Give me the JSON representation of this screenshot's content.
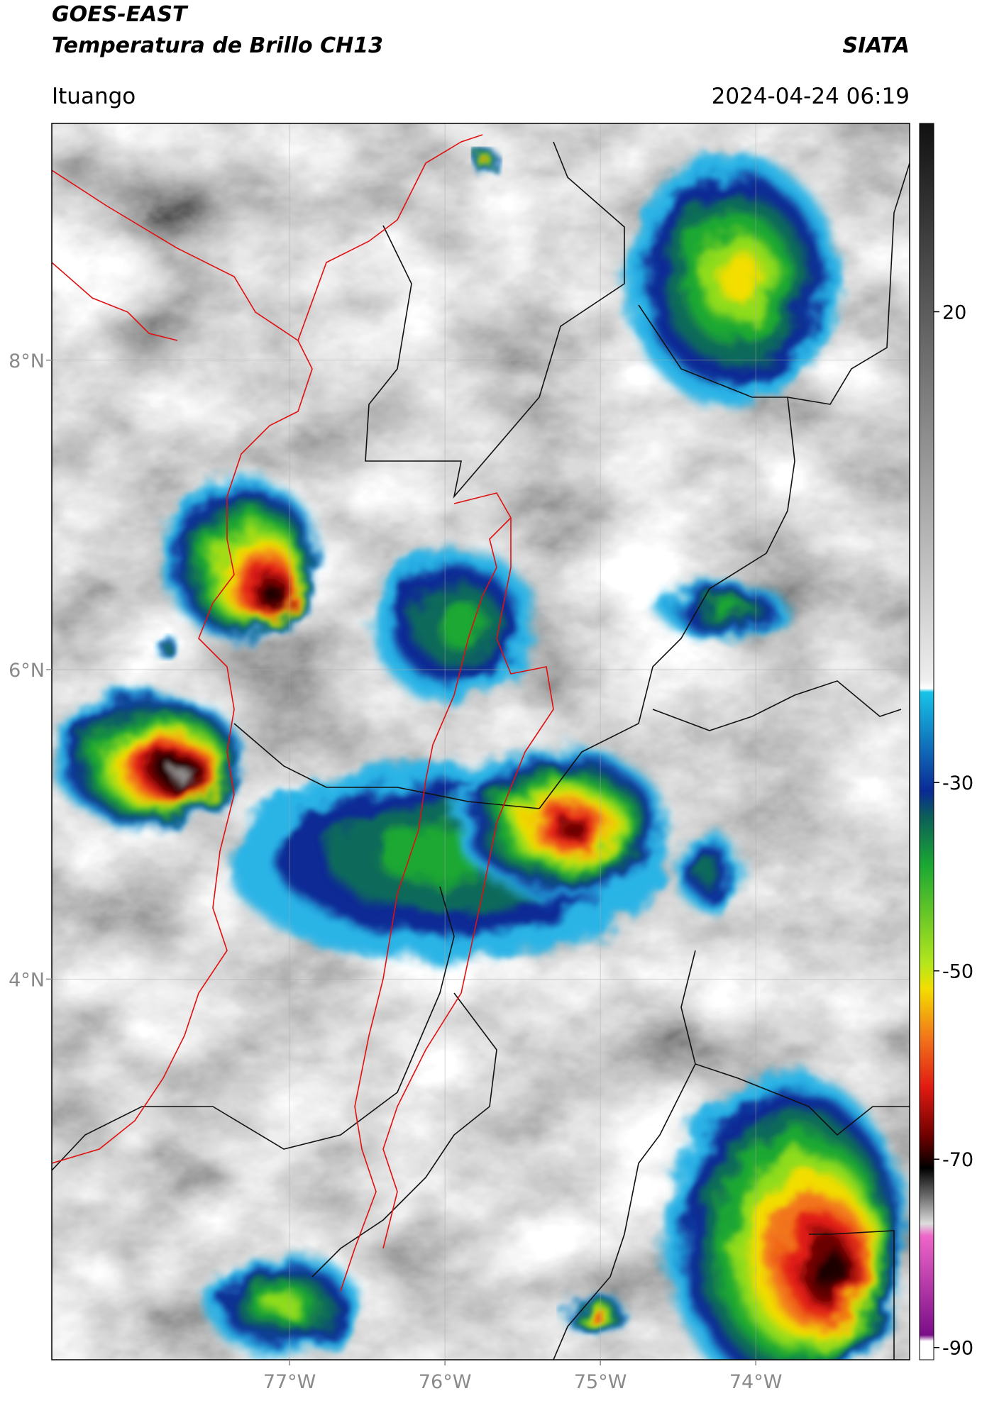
{
  "header": {
    "title": "GOES-EAST",
    "subtitle": "Temperatura de Brillo CH13",
    "source": "SIATA",
    "location": "Ituango",
    "datetime": "2024-04-24 06:19"
  },
  "map": {
    "xlim": [
      -78.53,
      -73.01
    ],
    "ylim": [
      1.54,
      9.53
    ],
    "xticks": [
      {
        "value": -77,
        "label": "77°W"
      },
      {
        "value": -76,
        "label": "76°W"
      },
      {
        "value": -75,
        "label": "75°W"
      },
      {
        "value": -74,
        "label": "74°W"
      }
    ],
    "yticks": [
      {
        "value": 8,
        "label": "8°N"
      },
      {
        "value": 6,
        "label": "6°N"
      },
      {
        "value": 4,
        "label": "4°N"
      }
    ],
    "grid": true
  },
  "colorbar": {
    "lim": [
      -91.3,
      40
    ],
    "ticks": [
      20,
      -30,
      -50,
      -70,
      -90
    ]
  }
}
